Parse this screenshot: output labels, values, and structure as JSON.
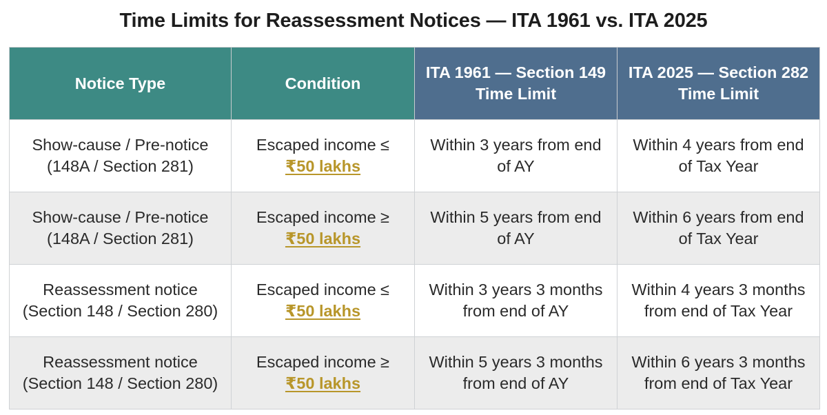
{
  "title": "Time Limits for Reassessment Notices — ITA 1961 vs. ITA 2025",
  "header": {
    "col1": "Notice Type",
    "col2": "Condition",
    "col3_line1": "ITA 1961 — Section 149",
    "col3_line2": "Time Limit",
    "col4_line1": "ITA 2025 — Section 282",
    "col4_line2": "Time Limit"
  },
  "colors": {
    "teal_header": "#3d8a84",
    "slate_header": "#4f6e8e",
    "threshold_gold": "#b8962a"
  },
  "rows": [
    {
      "notice_line1": "Show-cause / Pre-notice",
      "notice_line2": "(148A / Section 281)",
      "condition": "Escaped income ≤",
      "threshold": "₹50 lakhs",
      "ita1961_line1": "Within 3 years from end",
      "ita1961_line2": "of AY",
      "ita2025_line1": "Within 4 years from end",
      "ita2025_line2": "of Tax Year"
    },
    {
      "notice_line1": "Show-cause / Pre-notice",
      "notice_line2": "(148A / Section 281)",
      "condition": "Escaped income ≥",
      "threshold": "₹50 lakhs",
      "ita1961_line1": "Within 5 years from end",
      "ita1961_line2": "of AY",
      "ita2025_line1": "Within 6 years from end",
      "ita2025_line2": "of Tax Year"
    },
    {
      "notice_line1": "Reassessment notice",
      "notice_line2": "(Section 148 / Section 280)",
      "condition": "Escaped income ≤",
      "threshold": "₹50 lakhs",
      "ita1961_line1": "Within 3 years 3 months",
      "ita1961_line2": "from end of AY",
      "ita2025_line1": "Within 4 years 3 months",
      "ita2025_line2": "from end of Tax Year"
    },
    {
      "notice_line1": "Reassessment notice",
      "notice_line2": "(Section 148 / Section 280)",
      "condition": "Escaped income ≥",
      "threshold": "₹50 lakhs",
      "ita1961_line1": "Within 5 years 3 months",
      "ita1961_line2": "from end of AY",
      "ita2025_line1": "Within 6 years 3 months",
      "ita2025_line2": "from end of Tax Year"
    }
  ]
}
